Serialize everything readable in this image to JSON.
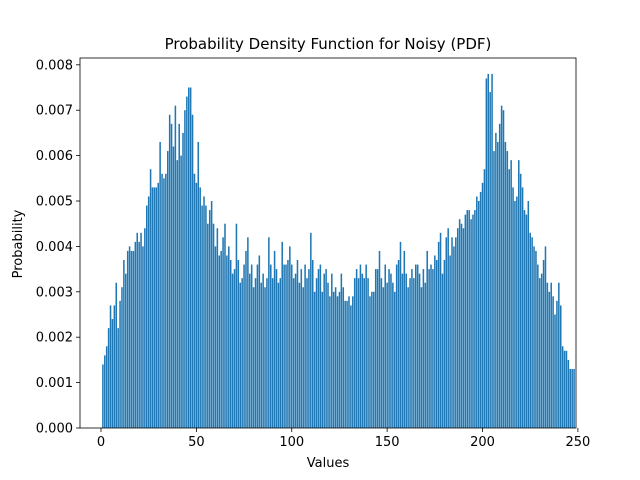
{
  "chart_data": {
    "type": "bar",
    "title": "Probability Density Function for Noisy (PDF)",
    "xlabel": "Values",
    "ylabel": "Probability",
    "xlim": [
      -11,
      249
    ],
    "ylim": [
      0,
      0.00815
    ],
    "xticks": [
      0,
      50,
      100,
      150,
      200,
      250
    ],
    "yticks": [
      0.0,
      0.001,
      0.002,
      0.003,
      0.004,
      0.005,
      0.006,
      0.007,
      0.008
    ],
    "ytick_labels": [
      "0.000",
      "0.001",
      "0.002",
      "0.003",
      "0.004",
      "0.005",
      "0.006",
      "0.007",
      "0.008"
    ],
    "bar_color": "#1f77b4",
    "grid": false,
    "bar_width": 0.8,
    "x_start": 1,
    "values": [
      0.0014,
      0.0016,
      0.0018,
      0.0022,
      0.0027,
      0.0024,
      0.0027,
      0.0032,
      0.0022,
      0.0028,
      0.0031,
      0.0037,
      0.0034,
      0.0039,
      0.004,
      0.0039,
      0.0039,
      0.0041,
      0.0043,
      0.0041,
      0.0043,
      0.004,
      0.0044,
      0.0049,
      0.0051,
      0.0057,
      0.0053,
      0.0053,
      0.0053,
      0.0054,
      0.0063,
      0.0056,
      0.0055,
      0.0056,
      0.0061,
      0.0069,
      0.0067,
      0.0062,
      0.0071,
      0.0059,
      0.0067,
      0.006,
      0.0065,
      0.007,
      0.0073,
      0.0075,
      0.0075,
      0.0069,
      0.0056,
      0.0054,
      0.0063,
      0.0053,
      0.0049,
      0.0051,
      0.0049,
      0.0045,
      0.0048,
      0.005,
      0.0045,
      0.004,
      0.0044,
      0.0038,
      0.0039,
      0.0042,
      0.0045,
      0.0038,
      0.004,
      0.0037,
      0.0034,
      0.0035,
      0.0045,
      0.0037,
      0.0032,
      0.0033,
      0.0036,
      0.0039,
      0.0042,
      0.0034,
      0.0036,
      0.0031,
      0.0033,
      0.0036,
      0.0038,
      0.0032,
      0.0034,
      0.0031,
      0.0033,
      0.0042,
      0.0036,
      0.0033,
      0.0039,
      0.0035,
      0.0032,
      0.0033,
      0.0041,
      0.0036,
      0.0036,
      0.0037,
      0.004,
      0.0036,
      0.0033,
      0.0034,
      0.0037,
      0.0032,
      0.0035,
      0.0031,
      0.0036,
      0.0033,
      0.0035,
      0.0043,
      0.0037,
      0.003,
      0.0033,
      0.0035,
      0.0036,
      0.003,
      0.0034,
      0.0035,
      0.0032,
      0.0029,
      0.0034,
      0.003,
      0.0031,
      0.0029,
      0.003,
      0.0034,
      0.0031,
      0.0028,
      0.0028,
      0.0029,
      0.0027,
      0.0029,
      0.0033,
      0.0035,
      0.0033,
      0.0036,
      0.0034,
      0.0033,
      0.0036,
      0.0033,
      0.0029,
      0.003,
      0.003,
      0.0035,
      0.0035,
      0.0039,
      0.0033,
      0.0031,
      0.0036,
      0.0032,
      0.0035,
      0.0034,
      0.0032,
      0.003,
      0.0036,
      0.0037,
      0.0041,
      0.0034,
      0.0039,
      0.0034,
      0.0031,
      0.0033,
      0.0035,
      0.0033,
      0.0036,
      0.0036,
      0.0034,
      0.0031,
      0.0035,
      0.0032,
      0.0039,
      0.0035,
      0.0036,
      0.0035,
      0.0038,
      0.0037,
      0.0041,
      0.0043,
      0.0034,
      0.0037,
      0.0042,
      0.0044,
      0.0038,
      0.0042,
      0.004,
      0.0042,
      0.0044,
      0.0046,
      0.0045,
      0.0044,
      0.0047,
      0.0048,
      0.0048,
      0.0046,
      0.0047,
      0.0048,
      0.0051,
      0.005,
      0.0052,
      0.0054,
      0.0057,
      0.0077,
      0.0078,
      0.0074,
      0.0078,
      0.0061,
      0.0065,
      0.0063,
      0.0067,
      0.0071,
      0.007,
      0.0063,
      0.0061,
      0.0057,
      0.0059,
      0.0053,
      0.005,
      0.0051,
      0.0059,
      0.0056,
      0.0053,
      0.0048,
      0.0047,
      0.005,
      0.0043,
      0.0042,
      0.004,
      0.0039,
      0.0036,
      0.0033,
      0.0034,
      0.0037,
      0.004,
      0.0032,
      0.003,
      0.0032,
      0.0029,
      0.0025,
      0.0028,
      0.0032,
      0.0027,
      0.0018,
      0.0017,
      0.0017,
      0.0015,
      0.0013,
      0.0013,
      0.0013
    ]
  }
}
